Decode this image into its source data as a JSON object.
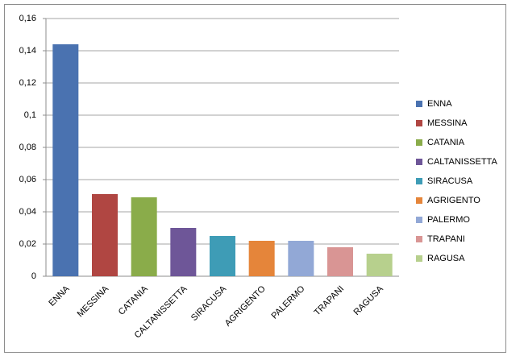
{
  "chart_data": {
    "type": "bar",
    "categories": [
      "ENNA",
      "MESSINA",
      "CATANIA",
      "CALTANISSETTA",
      "SIRACUSA",
      "AGRIGENTO",
      "PALERMO",
      "TRAPANI",
      "RAGUSA"
    ],
    "values": [
      0.144,
      0.051,
      0.049,
      0.03,
      0.025,
      0.022,
      0.022,
      0.018,
      0.014
    ],
    "colors": [
      "#4a72b0",
      "#b04642",
      "#8aac4a",
      "#6e5698",
      "#3e9cb6",
      "#e5853a",
      "#92a8d6",
      "#d99594",
      "#b7d08d"
    ],
    "ylim": [
      0,
      0.16
    ],
    "yticks": [
      0,
      {
        "value": 0.02,
        "label": "0,02"
      },
      {
        "value": 0.04,
        "label": "0,04"
      },
      {
        "value": 0.06,
        "label": "0,06"
      },
      {
        "value": 0.08,
        "label": "0,08"
      },
      {
        "value": 0.1,
        "label": "0,1"
      },
      {
        "value": 0.12,
        "label": "0,12"
      },
      {
        "value": 0.14,
        "label": "0,14"
      },
      {
        "value": 0.16,
        "label": "0,16"
      }
    ],
    "grid": true,
    "legend": "right"
  }
}
